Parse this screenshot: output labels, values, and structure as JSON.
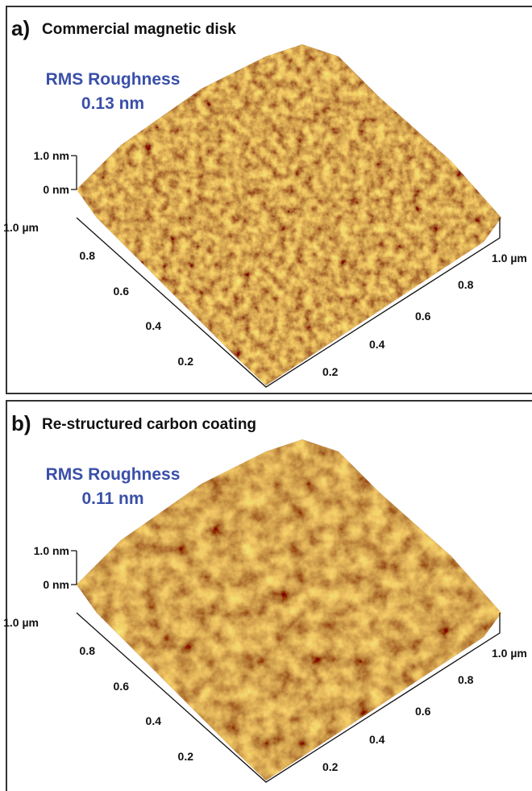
{
  "panels": [
    {
      "label": "a)",
      "title": "Commercial magnetic disk",
      "rms_label": "RMS Roughness",
      "rms_value": "0.13 nm",
      "z_ticks": [
        "1.0 nm",
        "0 nm"
      ],
      "left_ticks": [
        "1.0 µm",
        "0.8",
        "0.6",
        "0.4",
        "0.2"
      ],
      "right_ticks": [
        "1.0 µm",
        "0.8",
        "0.6",
        "0.4",
        "0.2"
      ]
    },
    {
      "label": "b)",
      "title": "Re-structured carbon coating",
      "rms_label": "RMS Roughness",
      "rms_value": "0.11 nm",
      "z_ticks": [
        "1.0 nm",
        "0 nm"
      ],
      "left_ticks": [
        "1.0 µm",
        "0.8",
        "0.6",
        "0.4",
        "0.2"
      ],
      "right_ticks": [
        "1.0 µm",
        "0.8",
        "0.6",
        "0.4",
        "0.2"
      ]
    }
  ]
}
